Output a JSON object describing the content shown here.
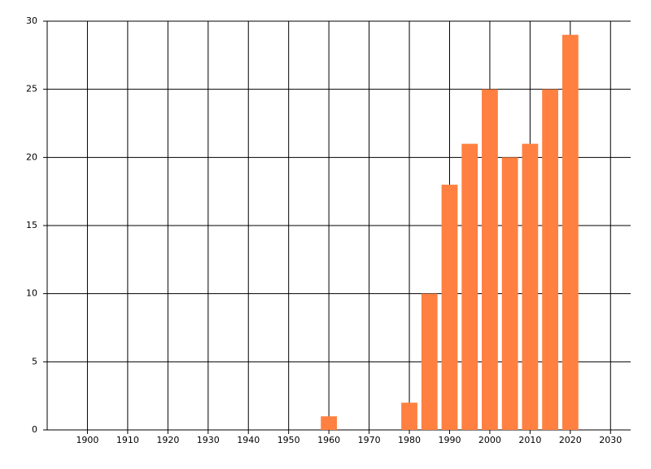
{
  "chart_data": {
    "type": "bar",
    "x": [
      1960,
      1980,
      1985,
      1990,
      1995,
      2000,
      2005,
      2010,
      2015,
      2020
    ],
    "values": [
      1,
      2,
      10,
      18,
      21,
      25,
      20,
      21,
      25,
      29
    ],
    "color": "#ff8040",
    "xlim": [
      1890,
      2035
    ],
    "xticks": [
      1900,
      1910,
      1920,
      1930,
      1940,
      1950,
      1960,
      1970,
      1980,
      1990,
      2000,
      2010,
      2020,
      2030
    ],
    "ylim": [
      0,
      30
    ],
    "yticks": [
      0,
      5,
      10,
      15,
      20,
      25,
      30
    ],
    "grid": true
  }
}
